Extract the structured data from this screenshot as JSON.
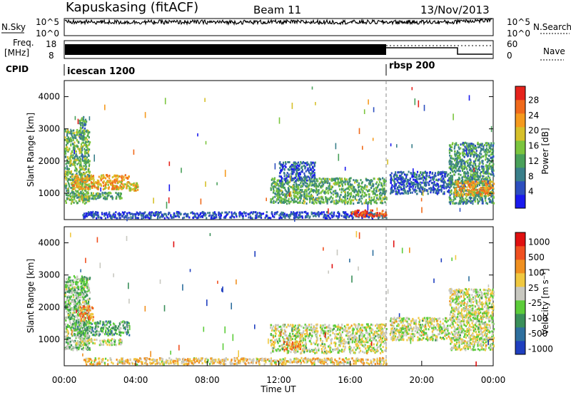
{
  "header": {
    "title": "Kapuskasing (fitACF)",
    "beam": "Beam 11",
    "date": "13/Nov/2013"
  },
  "top_panels": {
    "nsky_label": "N.Sky",
    "nsky_ticks": [
      "10^5",
      "10^0"
    ],
    "nsearch_label": "N.Search",
    "nsearch_ticks": [
      "10^5",
      "10^0"
    ],
    "freq_label_1": "Freq.",
    "freq_label_2": "[MHz]",
    "freq_ticks": [
      "18",
      "8"
    ],
    "nave_label": "Nave",
    "nave_ticks": [
      "60",
      "0"
    ],
    "cpid_label": "CPID",
    "cpid_segments": [
      {
        "name": "icescan 1200",
        "start": 0,
        "end": 18
      },
      {
        "name": "rbsp 200",
        "start": 18,
        "end": 24
      }
    ],
    "cpid_change_hour": 18
  },
  "chart_data": [
    {
      "type": "heatmap",
      "name": "power-panel",
      "ylabel": "Slant Range [km]",
      "xlim": [
        0,
        24
      ],
      "ylim": [
        180,
        4500
      ],
      "yticks": [
        1000,
        2000,
        3000,
        4000
      ],
      "colorbar_label": "Power [dB]",
      "colorbar_ticks": [
        "4",
        "8",
        "12",
        "16",
        "20",
        "24",
        "28"
      ],
      "colorbar_colors": [
        "#1a1aee",
        "#2d4fbf",
        "#3a7f8a",
        "#49a05a",
        "#7bc53e",
        "#d6c02a",
        "#f59a1e",
        "#f06a1c",
        "#e6231c"
      ],
      "echo_regions": [
        {
          "x": [
            0,
            1.4
          ],
          "y": [
            700,
            3000
          ],
          "level": 0.45
        },
        {
          "x": [
            0.4,
            3.6
          ],
          "y": [
            1150,
            1600
          ],
          "level": 0.7
        },
        {
          "x": [
            0.6,
            3.2
          ],
          "y": [
            850,
            1050
          ],
          "level": 0.4
        },
        {
          "x": [
            3.6,
            4.1
          ],
          "y": [
            1100,
            1350
          ],
          "level": 0.65
        },
        {
          "x": [
            0.8,
            1.2
          ],
          "y": [
            2700,
            3400
          ],
          "level": 0.35
        },
        {
          "x": [
            1,
            18
          ],
          "y": [
            250,
            450
          ],
          "level": 0.15
        },
        {
          "x": [
            11.5,
            18
          ],
          "y": [
            700,
            1500
          ],
          "level": 0.4
        },
        {
          "x": [
            12,
            14
          ],
          "y": [
            1400,
            2000
          ],
          "level": 0.2
        },
        {
          "x": [
            16,
            18
          ],
          "y": [
            300,
            500
          ],
          "level": 0.92
        },
        {
          "x": [
            18.2,
            21.5
          ],
          "y": [
            1000,
            1700
          ],
          "level": 0.2
        },
        {
          "x": [
            21.5,
            24
          ],
          "y": [
            700,
            2600
          ],
          "level": 0.35
        },
        {
          "x": [
            21.8,
            24
          ],
          "y": [
            950,
            1400
          ],
          "level": 0.7
        }
      ]
    },
    {
      "type": "heatmap",
      "name": "velocity-panel",
      "ylabel": "Slant Range [km]",
      "xlabel": "Time UT",
      "xlim": [
        0,
        24
      ],
      "xticks": [
        "00:00",
        "04:00",
        "08:00",
        "12:00",
        "16:00",
        "20:00",
        "00:00"
      ],
      "ylim": [
        180,
        4500
      ],
      "yticks": [
        1000,
        2000,
        3000,
        4000
      ],
      "colorbar_label": "Velocity [m s⁻¹]",
      "colorbar_ticks": [
        "1000",
        "500",
        "100",
        "25",
        "-25",
        "-100",
        "-500",
        "-1000"
      ],
      "colorbar_colors": [
        "#1f3fbf",
        "#2e6f9e",
        "#3a8f5a",
        "#5ccc3a",
        "#c8c8c0",
        "#f0c840",
        "#f09020",
        "#f05020",
        "#e01010"
      ],
      "echo_regions": [
        {
          "x": [
            0,
            1.4
          ],
          "y": [
            700,
            3000
          ],
          "level": 0.4
        },
        {
          "x": [
            0.4,
            3.6
          ],
          "y": [
            1150,
            1600
          ],
          "level": 0.35
        },
        {
          "x": [
            0.8,
            1.6
          ],
          "y": [
            1600,
            2100
          ],
          "level": 0.7
        },
        {
          "x": [
            0.6,
            3.2
          ],
          "y": [
            850,
            1050
          ],
          "level": 0.5
        },
        {
          "x": [
            1,
            18
          ],
          "y": [
            250,
            450
          ],
          "level": 0.6
        },
        {
          "x": [
            11.5,
            18
          ],
          "y": [
            600,
            1500
          ],
          "level": 0.5
        },
        {
          "x": [
            12.2,
            13.2
          ],
          "y": [
            700,
            950
          ],
          "level": 0.72
        },
        {
          "x": [
            18.2,
            21.5
          ],
          "y": [
            1000,
            1700
          ],
          "level": 0.5
        },
        {
          "x": [
            21.5,
            24
          ],
          "y": [
            700,
            2600
          ],
          "level": 0.5
        }
      ]
    }
  ]
}
